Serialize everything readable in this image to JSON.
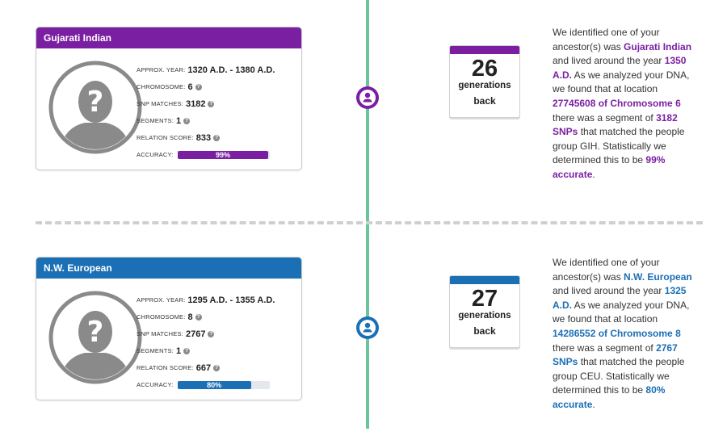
{
  "sections": [
    {
      "name": "Gujarati Indian",
      "color": "#7b1fa2",
      "approx_year_label": "APPROX. YEAR:",
      "approx_year": "1320 A.D. - 1380 A.D.",
      "chromosome_label": "CHROMOSOME:",
      "chromosome": "6",
      "snp_label": "SNP MATCHES:",
      "snp_matches": "3182",
      "segments_label": "SEGMENTS:",
      "segments": "1",
      "relation_label": "RELATION SCORE:",
      "relation_score": "833",
      "accuracy_label": "ACCURACY:",
      "accuracy_text": "99%",
      "accuracy_value": 99,
      "generations": "26",
      "generations_label": "generations",
      "back_label": "back",
      "desc": {
        "t1": "We identified one of your ancestor(s) was ",
        "h1": "Gujarati Indian",
        "t2": " and lived around the year ",
        "h2": "1350 A.D.",
        "t3": " As we analyzed your DNA, we found that at location ",
        "h3": "27745608 of Chromosome 6",
        "t4": " there was a segment of ",
        "h4": "3182 SNPs",
        "t5": " that matched the people group GIH. Statistically we determined this to be ",
        "h5": "99% accurate",
        "t6": "."
      }
    },
    {
      "name": "N.W. European",
      "color": "#1b6fb5",
      "approx_year_label": "APPROX. YEAR:",
      "approx_year": "1295 A.D. - 1355 A.D.",
      "chromosome_label": "CHROMOSOME:",
      "chromosome": "8",
      "snp_label": "SNP MATCHES:",
      "snp_matches": "2767",
      "segments_label": "SEGMENTS:",
      "segments": "1",
      "relation_label": "RELATION SCORE:",
      "relation_score": "667",
      "accuracy_label": "ACCURACY:",
      "accuracy_text": "80%",
      "accuracy_value": 80,
      "generations": "27",
      "generations_label": "generations",
      "back_label": "back",
      "desc": {
        "t1": "We identified one of your ancestor(s) was ",
        "h1": "N.W. European",
        "t2": " and lived around the year ",
        "h2": "1325 A.D.",
        "t3": " As we analyzed your DNA, we found that at location ",
        "h3": "14286552 of Chromosome 8",
        "t4": " there was a segment of ",
        "h4": "2767 SNPs",
        "t5": " that matched the people group CEU. Statistically we determined this to be ",
        "h5": "80% accurate",
        "t6": "."
      }
    }
  ],
  "icons": {
    "help": "question-mark-icon",
    "avatar": "unknown-person-icon",
    "node": "person-icon"
  },
  "help_glyph": "?",
  "timeline_color": "#6cc49a"
}
